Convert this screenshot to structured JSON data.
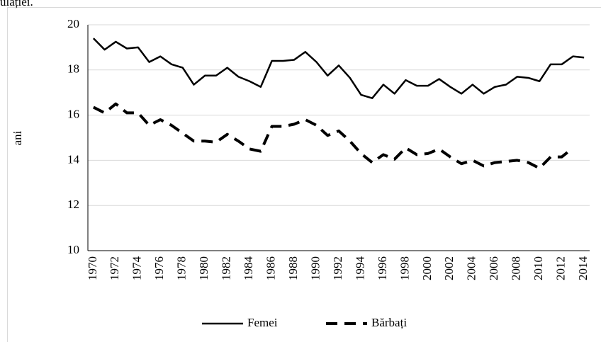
{
  "caption": "ulației.",
  "chart_data": {
    "type": "line",
    "y_label": "ani",
    "categories": [
      "1970",
      null,
      "1972",
      null,
      "1974",
      null,
      "1976",
      null,
      "1978",
      null,
      "1980",
      null,
      "1982",
      null,
      "1984",
      null,
      "1986",
      null,
      "1988",
      null,
      "1990",
      null,
      "1992",
      null,
      "1994",
      null,
      "1996",
      null,
      "1998",
      null,
      "2000",
      null,
      "2002",
      null,
      "2004",
      null,
      "2006",
      null,
      "2008",
      null,
      "2010",
      null,
      "2012",
      null,
      "2014"
    ],
    "series": [
      {
        "name": "Femei",
        "color": "#000000",
        "dash": "solid",
        "values": [
          19.4,
          18.9,
          19.25,
          18.95,
          19.0,
          18.35,
          18.6,
          18.25,
          18.1,
          17.35,
          17.75,
          17.75,
          18.1,
          17.7,
          17.5,
          17.25,
          18.4,
          18.4,
          18.45,
          18.8,
          18.35,
          17.75,
          18.2,
          17.65,
          16.9,
          16.75,
          17.35,
          16.95,
          17.55,
          17.3,
          17.3,
          17.6,
          17.25,
          16.95,
          17.35,
          16.95,
          17.25,
          17.35,
          17.7,
          17.65,
          17.5,
          18.25,
          18.25,
          18.6,
          18.55
        ]
      },
      {
        "name": "Bărbați",
        "color": "#000000",
        "dash": "dashed",
        "values": [
          16.35,
          16.1,
          16.5,
          16.1,
          16.1,
          15.55,
          15.8,
          15.55,
          15.2,
          14.85,
          14.85,
          14.8,
          15.15,
          14.85,
          14.5,
          14.4,
          15.5,
          15.5,
          15.6,
          15.8,
          15.55,
          15.1,
          15.3,
          14.85,
          14.3,
          13.9,
          14.25,
          14.05,
          14.55,
          14.25,
          14.3,
          14.5,
          14.15,
          13.85,
          14.0,
          13.75,
          13.9,
          13.95,
          14.0,
          13.9,
          13.65,
          14.15,
          14.15,
          14.55,
          null
        ]
      }
    ],
    "ylim": [
      10,
      20
    ],
    "yticks": [
      10,
      12,
      14,
      16,
      18,
      20
    ],
    "grid": true,
    "legend": "bottom"
  }
}
